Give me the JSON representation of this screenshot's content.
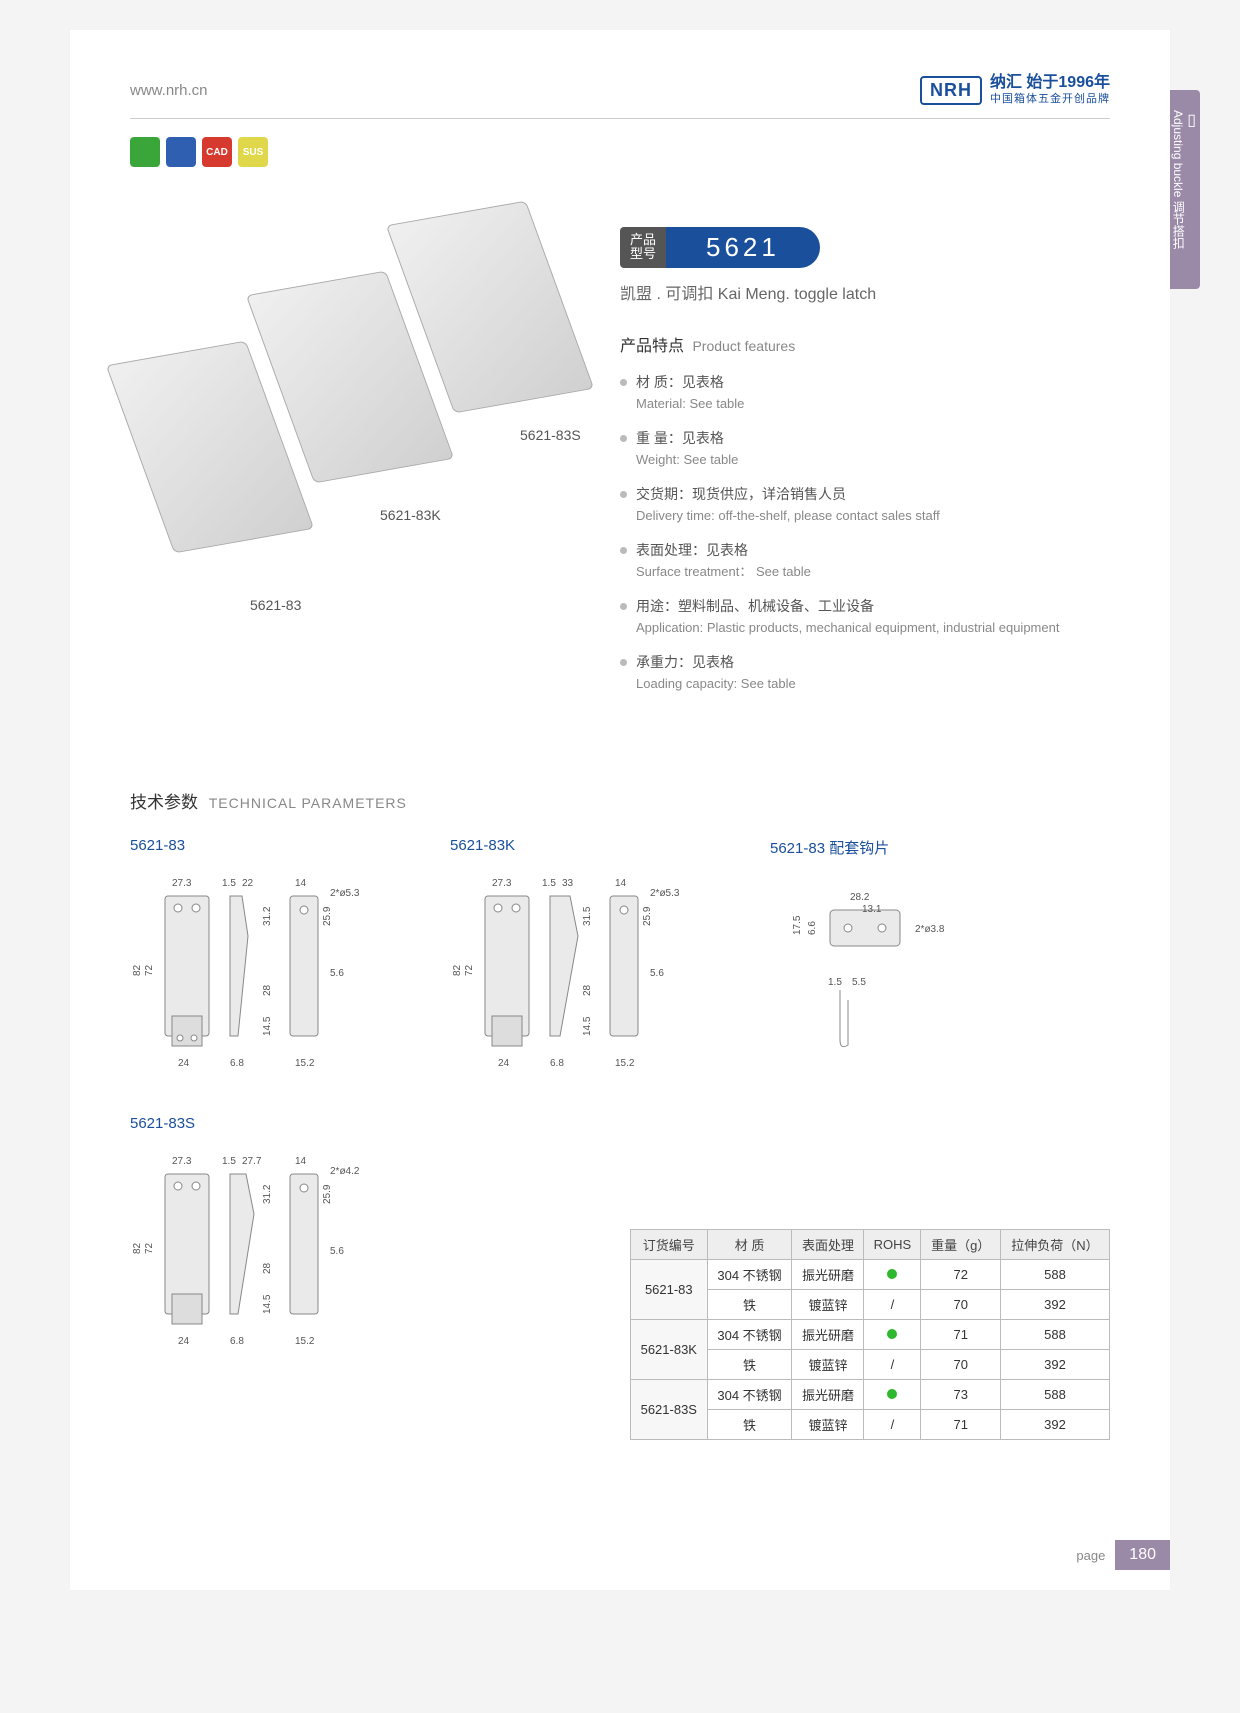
{
  "header": {
    "url": "www.nrh.cn",
    "brand_box": "NRH",
    "brand_cn": "纳汇 始于1996年",
    "brand_sub": "中国箱体五金开创品牌",
    "reg": "®"
  },
  "badges": [
    {
      "bg": "#3aa63a",
      "txt": ""
    },
    {
      "bg": "#2e5fb0",
      "txt": ""
    },
    {
      "bg": "#d63a2e",
      "txt": "CAD"
    },
    {
      "bg": "#e0d84a",
      "txt": "SUS"
    }
  ],
  "side_tab": {
    "cn": "调节搭扣",
    "en": "Adjusting buckle"
  },
  "product_labels": {
    "a": "5621-83",
    "b": "5621-83K",
    "c": "5621-83S"
  },
  "model": {
    "label_l1": "产品",
    "label_l2": "型号",
    "number": "5621"
  },
  "subtitle": "凯盟 . 可调扣    Kai Meng. toggle latch",
  "features_title_cn": "产品特点",
  "features_title_en": "Product features",
  "features": [
    {
      "cn": "材 质：见表格",
      "en": "Material: See table"
    },
    {
      "cn": "重 量：见表格",
      "en": "Weight: See table"
    },
    {
      "cn": "交货期：现货供应，详洽销售人员",
      "en": "Delivery time: off-the-shelf, please contact sales staff"
    },
    {
      "cn": "表面处理：见表格",
      "en": "Surface treatment： See table"
    },
    {
      "cn": "用途：塑料制品、机械设备、工业设备",
      "en": "Application: Plastic products, mechanical equipment, industrial equipment"
    },
    {
      "cn": "承重力：见表格",
      "en": "Loading capacity: See table"
    }
  ],
  "tech_title_cn": "技术参数",
  "tech_title_en": "TECHNICAL PARAMETERS",
  "drawings": {
    "d1": {
      "label": "5621-83",
      "dims": {
        "w1": "27.3",
        "t": "1.5",
        "w2": "22",
        "h1": "82",
        "h2": "72",
        "base": "24",
        "side_t": "6.8",
        "top_w": "14",
        "hole": "2*ø5.3",
        "h3": "31.2",
        "h4": "25.9",
        "h5": "28",
        "h6": "14.5",
        "r": "5.6",
        "base2": "15.2"
      }
    },
    "d2": {
      "label": "5621-83K",
      "dims": {
        "w1": "27.3",
        "t": "1.5",
        "w2": "33",
        "h1": "82",
        "h2": "72",
        "base": "24",
        "side_t": "6.8",
        "top_w": "14",
        "hole": "2*ø5.3",
        "h3": "31.5",
        "h4": "25.9",
        "h5": "28",
        "h6": "14.5",
        "r": "5.6",
        "base2": "15.2"
      }
    },
    "d3": {
      "label": "5621-83 配套钩片",
      "dims": {
        "w": "28.2",
        "w2": "13.1",
        "h": "17.5",
        "h2": "6.6",
        "hole": "2*ø3.8",
        "t1": "1.5",
        "t2": "5.5"
      }
    },
    "d4": {
      "label": "5621-83S",
      "dims": {
        "w1": "27.3",
        "t": "1.5",
        "w2": "27.7",
        "h1": "82",
        "h2": "72",
        "base": "24",
        "side_t": "6.8",
        "top_w": "14",
        "hole": "2*ø4.2",
        "h3": "31.2",
        "h4": "25.9",
        "h5": "28",
        "h6": "14.5",
        "r": "5.6",
        "base2": "15.2"
      }
    }
  },
  "table": {
    "headers": [
      "订货编号",
      "材 质",
      "表面处理",
      "ROHS",
      "重量（g）",
      "拉伸负荷（N）"
    ],
    "rows": [
      {
        "code": "5621-83",
        "r": [
          [
            "304 不锈钢",
            "振光研磨",
            "dot",
            "72",
            "588"
          ],
          [
            "铁",
            "镀蓝锌",
            "/",
            "70",
            "392"
          ]
        ]
      },
      {
        "code": "5621-83K",
        "r": [
          [
            "304 不锈钢",
            "振光研磨",
            "dot",
            "71",
            "588"
          ],
          [
            "铁",
            "镀蓝锌",
            "/",
            "70",
            "392"
          ]
        ]
      },
      {
        "code": "5621-83S",
        "r": [
          [
            "304 不锈钢",
            "振光研磨",
            "dot",
            "73",
            "588"
          ],
          [
            "铁",
            "镀蓝锌",
            "/",
            "71",
            "392"
          ]
        ]
      }
    ]
  },
  "page_label": "page",
  "page_number": "180"
}
